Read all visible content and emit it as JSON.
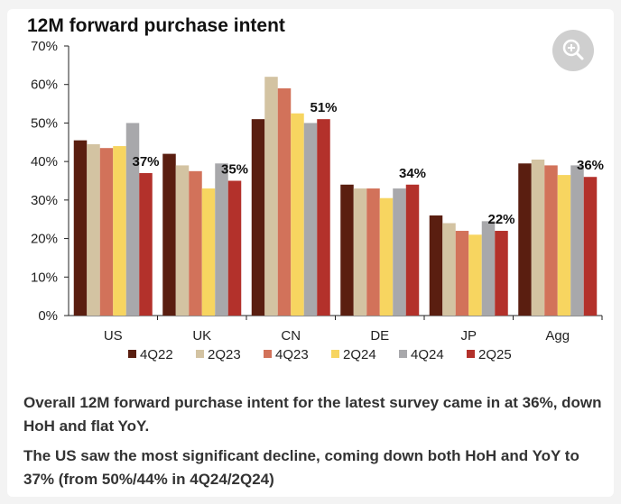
{
  "chart_data": {
    "type": "bar",
    "title": "12M forward purchase intent",
    "categories": [
      "US",
      "UK",
      "CN",
      "DE",
      "JP",
      "Agg"
    ],
    "y_ticks": [
      "70%",
      "60%",
      "50%",
      "40%",
      "30%",
      "20%",
      "10%",
      "0%"
    ],
    "ylim": [
      0,
      70
    ],
    "series": [
      {
        "name": "4Q22",
        "color": "#5a1e10",
        "values": [
          45.5,
          42,
          51,
          34,
          26,
          39.5
        ]
      },
      {
        "name": "2Q23",
        "color": "#d3c3a2",
        "values": [
          44.5,
          39,
          62,
          33,
          24,
          40.5
        ]
      },
      {
        "name": "4Q23",
        "color": "#d2725a",
        "values": [
          43.5,
          37.5,
          59,
          33,
          22,
          39
        ]
      },
      {
        "name": "2Q24",
        "color": "#f7d560",
        "values": [
          44,
          33,
          52.5,
          30.5,
          21,
          36.5
        ]
      },
      {
        "name": "4Q24",
        "color": "#a8a8ab",
        "values": [
          50,
          39.5,
          50,
          33,
          24.5,
          39
        ]
      },
      {
        "name": "2Q25",
        "color": "#b3312b",
        "values": [
          37,
          35,
          51,
          34,
          22,
          36
        ]
      }
    ],
    "data_labels": [
      "37%",
      "35%",
      "51%",
      "34%",
      "22%",
      "36%"
    ],
    "legend": "bottom",
    "grid": false
  },
  "captions": [
    "Overall 12M forward purchase intent for the latest survey came in at 36%, down HoH and flat YoY.",
    "The US saw the most significant decline, coming down both HoH and YoY to 37% (from 50%/44% in 4Q24/2Q24)"
  ],
  "icons": {
    "zoom": "zoom-in-icon"
  }
}
